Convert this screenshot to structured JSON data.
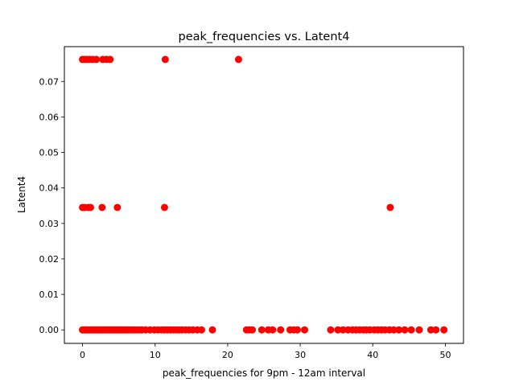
{
  "chart_data": {
    "type": "scatter",
    "title": "peak_frequencies vs. Latent4",
    "xlabel": "peak_frequencies for 9pm - 12am interval",
    "ylabel": "Latent4",
    "xlim": [
      -2.5,
      52.5
    ],
    "ylim": [
      -0.0038,
      0.0798
    ],
    "xticks": [
      0,
      10,
      20,
      30,
      40,
      50
    ],
    "xtick_labels": [
      "0",
      "10",
      "20",
      "30",
      "40",
      "50"
    ],
    "yticks": [
      0.0,
      0.01,
      0.02,
      0.03,
      0.04,
      0.05,
      0.06,
      0.07
    ],
    "ytick_labels": [
      "0.00",
      "0.01",
      "0.02",
      "0.03",
      "0.04",
      "0.05",
      "0.06",
      "0.07"
    ],
    "grid": false,
    "marker_color": "#ff0000",
    "series": [
      {
        "x": [
          0.0,
          0.2,
          0.4,
          0.6,
          0.8,
          1.0,
          1.2,
          1.4,
          1.6,
          1.8,
          2.0,
          2.2,
          2.4,
          2.6,
          2.8,
          3.0,
          3.2,
          3.4,
          3.6,
          3.8,
          4.0,
          4.2,
          4.4,
          4.6,
          4.8,
          5.0,
          5.2,
          5.4,
          5.6,
          5.8,
          6.0,
          6.2,
          6.5,
          6.8,
          7.1,
          7.4,
          7.8,
          8.2,
          8.7,
          9.3,
          9.9,
          10.4,
          10.9,
          11.3,
          11.7,
          12.1,
          12.5,
          12.9,
          13.3,
          13.7,
          14.2,
          14.7,
          15.2,
          15.8,
          16.4,
          17.9,
          22.6,
          23.0,
          23.4,
          24.7,
          25.6,
          26.2,
          27.3,
          28.6,
          29.1,
          29.6,
          30.6,
          34.2,
          35.2,
          35.9,
          36.6,
          37.2,
          37.7,
          38.2,
          38.7,
          39.1,
          39.6,
          40.2,
          40.7,
          41.2,
          41.7,
          42.3,
          42.9,
          43.6,
          44.4,
          45.3,
          46.4,
          48.0,
          48.7,
          49.8,
          0.0,
          0.3,
          0.8,
          1.1,
          2.7,
          4.8,
          11.3,
          42.4,
          0.0,
          0.3,
          0.6,
          1.0,
          1.4,
          1.9,
          2.8,
          3.3,
          3.8,
          11.4,
          21.5
        ],
        "y": [
          0,
          0,
          0,
          0,
          0,
          0,
          0,
          0,
          0,
          0,
          0,
          0,
          0,
          0,
          0,
          0,
          0,
          0,
          0,
          0,
          0,
          0,
          0,
          0,
          0,
          0,
          0,
          0,
          0,
          0,
          0,
          0,
          0,
          0,
          0,
          0,
          0,
          0,
          0,
          0,
          0,
          0,
          0,
          0,
          0,
          0,
          0,
          0,
          0,
          0,
          0,
          0,
          0,
          0,
          0,
          0,
          0,
          0,
          0,
          0,
          0,
          0,
          0,
          0,
          0,
          0,
          0,
          0,
          0,
          0,
          0,
          0,
          0,
          0,
          0,
          0,
          0,
          0,
          0,
          0,
          0,
          0,
          0,
          0,
          0,
          0,
          0,
          0,
          0,
          0,
          0.0345,
          0.0345,
          0.0345,
          0.0345,
          0.0345,
          0.0345,
          0.0345,
          0.0345,
          0.0762,
          0.0762,
          0.0762,
          0.0762,
          0.0762,
          0.0762,
          0.0762,
          0.0762,
          0.0762,
          0.0762,
          0.0762
        ]
      }
    ]
  }
}
